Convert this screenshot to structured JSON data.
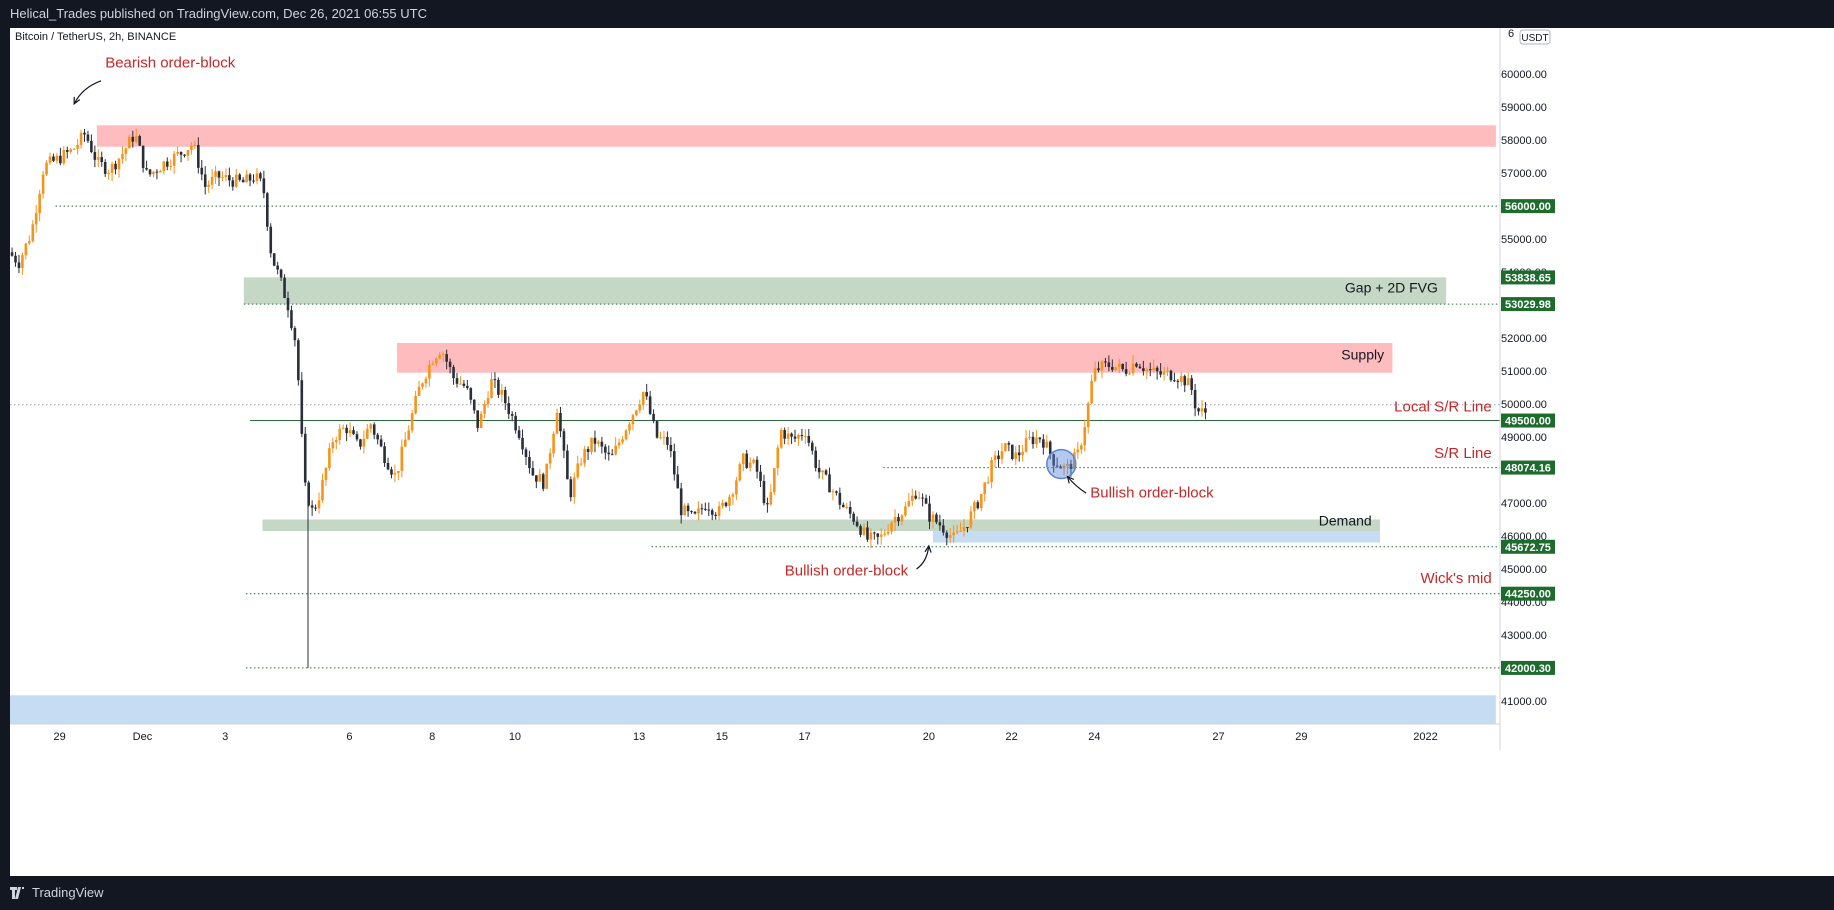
{
  "header": {
    "published": "Helical_Trades published on TradingView.com, Dec 26, 2021 06:55 UTC"
  },
  "footer": {
    "brand": "TradingView"
  },
  "chart_data": {
    "type": "candlestick",
    "symbol_label": "Bitcoin / TetherUS, 2h, BINANCE",
    "currency_badge": "USDT",
    "y_axis": {
      "range": [
        40300,
        61400
      ],
      "ticks": [
        41000,
        42000,
        43000,
        44000,
        45000,
        46000,
        47000,
        48000,
        49000,
        50000,
        51000,
        52000,
        54000,
        55000,
        57000,
        58000,
        59000,
        60000
      ],
      "tick_labels": [
        "41000.00",
        "42000.00",
        "43000.00",
        "44000.00",
        "45000.00",
        "46000.00",
        "47000.00",
        "48000.00",
        "49000.00",
        "50000.00",
        "51000.00",
        "52000.00",
        "54000.00",
        "55000.00",
        "57000.00",
        "58000.00",
        "59000.00",
        "60000.00"
      ],
      "top_partial_label": "6"
    },
    "x_axis": {
      "range_days": [
        -1.2,
        34.8
      ],
      "ticks": [
        {
          "day": 0,
          "label": "29"
        },
        {
          "day": 2,
          "label": "Dec"
        },
        {
          "day": 4,
          "label": "3"
        },
        {
          "day": 7,
          "label": "6"
        },
        {
          "day": 9,
          "label": "8"
        },
        {
          "day": 11,
          "label": "10"
        },
        {
          "day": 14,
          "label": "13"
        },
        {
          "day": 16,
          "label": "15"
        },
        {
          "day": 18,
          "label": "17"
        },
        {
          "day": 21,
          "label": "20"
        },
        {
          "day": 23,
          "label": "22"
        },
        {
          "day": 25,
          "label": "24"
        },
        {
          "day": 28,
          "label": "27"
        },
        {
          "day": 30,
          "label": "29"
        },
        {
          "day": 33,
          "label": "2022"
        }
      ]
    },
    "price_markers": [
      {
        "label": "56000.00",
        "value": 56000,
        "color": "#1e6b2e"
      },
      {
        "label": "53838.65",
        "value": 53838.65,
        "color": "#1e6b2e"
      },
      {
        "label": "53029.98",
        "value": 53029.98,
        "color": "#1e6b2e"
      },
      {
        "label": "49500.00",
        "value": 49500,
        "color": "#1e6b2e"
      },
      {
        "label": "48074.16",
        "value": 48074.16,
        "color": "#1e6b2e"
      },
      {
        "label": "45672.75",
        "value": 45672.75,
        "color": "#1e6b2e"
      },
      {
        "label": "44250.00",
        "value": 44250,
        "color": "#1e6b2e"
      },
      {
        "label": "42000.30",
        "value": 42000.3,
        "color": "#1e6b2e"
      }
    ],
    "zones": [
      {
        "name": "bearish-order-block-zone",
        "x0": 0.9,
        "x1": 34.7,
        "y0": 57800,
        "y1": 58450,
        "color": "#ffbcbf"
      },
      {
        "name": "gap-fvg-zone",
        "x0": 4.45,
        "x1": 33.5,
        "y0": 53030,
        "y1": 53840,
        "color": "#c5d8c6"
      },
      {
        "name": "supply-zone",
        "x0": 8.15,
        "x1": 32.2,
        "y0": 50950,
        "y1": 51850,
        "color": "#ffbcbf"
      },
      {
        "name": "demand-zone",
        "x0": 4.9,
        "x1": 31.9,
        "y0": 46150,
        "y1": 46500,
        "color": "#c5d8c6"
      },
      {
        "name": "demand-lower-zone",
        "x0": 21.1,
        "x1": 31.9,
        "y0": 45800,
        "y1": 46150,
        "color": "#c6dcf3"
      },
      {
        "name": "bottom-blue-zone",
        "x0": -1.2,
        "x1": 34.7,
        "y0": 40300,
        "y1": 41170,
        "color": "#c6dcf3"
      }
    ],
    "lines": [
      {
        "name": "level-56000-line",
        "x0": -0.1,
        "y": 56000,
        "style": "dotted",
        "color": "#2e6b3c"
      },
      {
        "name": "level-53030-line",
        "x0": 4.45,
        "y": 53030,
        "style": "dotted",
        "color": "#2e6b3c"
      },
      {
        "name": "local-sr-line",
        "x0": 4.6,
        "y": 49500,
        "style": "solid",
        "color": "#2e6b3c"
      },
      {
        "name": "sr-line",
        "x0": 19.9,
        "y": 48074,
        "style": "dotted",
        "color": "#2e6b3c"
      },
      {
        "name": "level-45673-line",
        "x0": 14.3,
        "y": 45673,
        "style": "dotted",
        "color": "#2e6b3c"
      },
      {
        "name": "wicks-mid-line",
        "x0": 4.5,
        "y": 44250,
        "style": "dotted",
        "color": "#2e6b3c"
      },
      {
        "name": "level-42000-line",
        "x0": 4.5,
        "y": 42000,
        "style": "dotted",
        "color": "#2e6b3c"
      },
      {
        "name": "last-price-line",
        "x0": -1.2,
        "y": 49980,
        "style": "dotted",
        "color": "#9aa0ac"
      }
    ],
    "annotations": [
      {
        "name": "bearish-order-block-label",
        "text": "Bearish order-block",
        "x": 1.1,
        "y": 60200,
        "anchor": "start",
        "color": "#c62828"
      },
      {
        "name": "gap-fvg-label",
        "text": "Gap + 2D FVG",
        "x": 33.3,
        "y": 53380,
        "anchor": "end",
        "color": "#131722"
      },
      {
        "name": "supply-label",
        "text": "Supply",
        "x": 32.0,
        "y": 51350,
        "anchor": "end",
        "color": "#131722"
      },
      {
        "name": "local-sr-label",
        "text": "Local S/R Line",
        "x": 34.6,
        "y": 49780,
        "anchor": "end",
        "color": "#c62828"
      },
      {
        "name": "sr-line-label",
        "text": "S/R Line",
        "x": 34.6,
        "y": 48370,
        "anchor": "end",
        "color": "#c62828"
      },
      {
        "name": "bullish-order-block-label-right",
        "text": "Bullish order-block",
        "x": 24.9,
        "y": 47170,
        "anchor": "start",
        "color": "#c62828"
      },
      {
        "name": "demand-label",
        "text": "Demand",
        "x": 31.7,
        "y": 46320,
        "anchor": "end",
        "color": "#131722"
      },
      {
        "name": "bullish-order-block-label-left",
        "text": "Bullish order-block",
        "x": 20.5,
        "y": 44800,
        "anchor": "end",
        "color": "#c62828"
      },
      {
        "name": "wicks-mid-label",
        "text": "Wick's mid",
        "x": 34.6,
        "y": 44570,
        "anchor": "end",
        "color": "#c62828"
      }
    ],
    "arrows": [
      {
        "name": "bearish-arrow",
        "from": [
          1.0,
          59800
        ],
        "via": [
          0.55,
          59600
        ],
        "to": [
          0.35,
          59100
        ]
      },
      {
        "name": "bullish-arrow-right",
        "from": [
          24.8,
          47300
        ],
        "via": [
          24.55,
          47500
        ],
        "to": [
          24.35,
          47800
        ]
      },
      {
        "name": "bullish-arrow-left",
        "from": [
          20.7,
          45000
        ],
        "via": [
          20.95,
          45200
        ],
        "to": [
          21.0,
          45700
        ]
      }
    ],
    "highlight_circle": {
      "name": "bullish-order-block-circle",
      "x": 24.2,
      "y": 48180,
      "r_days": 0.35,
      "color": "#5b86d6"
    },
    "anchors": [
      {
        "d": -1.15,
        "p": 54600
      },
      {
        "d": -0.9,
        "p": 54300
      },
      {
        "d": -0.6,
        "p": 55200
      },
      {
        "d": -0.3,
        "p": 57200
      },
      {
        "d": 0.0,
        "p": 57400
      },
      {
        "d": 0.4,
        "p": 57700
      },
      {
        "d": 0.7,
        "p": 58200
      },
      {
        "d": 1.0,
        "p": 57300
      },
      {
        "d": 1.3,
        "p": 57100
      },
      {
        "d": 1.6,
        "p": 57600
      },
      {
        "d": 1.9,
        "p": 58200
      },
      {
        "d": 2.2,
        "p": 56900
      },
      {
        "d": 2.6,
        "p": 57300
      },
      {
        "d": 3.0,
        "p": 57600
      },
      {
        "d": 3.3,
        "p": 57900
      },
      {
        "d": 3.6,
        "p": 56600
      },
      {
        "d": 3.9,
        "p": 56900
      },
      {
        "d": 4.2,
        "p": 56800
      },
      {
        "d": 4.5,
        "p": 56700
      },
      {
        "d": 4.8,
        "p": 56900
      },
      {
        "d": 5.0,
        "p": 56600
      },
      {
        "d": 5.2,
        "p": 54500
      },
      {
        "d": 5.4,
        "p": 53800
      },
      {
        "d": 5.6,
        "p": 53000
      },
      {
        "d": 5.8,
        "p": 51800
      },
      {
        "d": 6.0,
        "p": 47500
      },
      {
        "d": 6.2,
        "p": 46700
      },
      {
        "d": 6.4,
        "p": 47400
      },
      {
        "d": 6.7,
        "p": 49000
      },
      {
        "d": 7.0,
        "p": 49300
      },
      {
        "d": 7.3,
        "p": 48700
      },
      {
        "d": 7.6,
        "p": 49400
      },
      {
        "d": 7.9,
        "p": 48500
      },
      {
        "d": 8.2,
        "p": 47800
      },
      {
        "d": 8.5,
        "p": 49200
      },
      {
        "d": 8.8,
        "p": 50600
      },
      {
        "d": 9.1,
        "p": 51400
      },
      {
        "d": 9.3,
        "p": 51700
      },
      {
        "d": 9.6,
        "p": 50800
      },
      {
        "d": 9.9,
        "p": 50500
      },
      {
        "d": 10.2,
        "p": 49300
      },
      {
        "d": 10.5,
        "p": 50700
      },
      {
        "d": 10.8,
        "p": 50200
      },
      {
        "d": 11.2,
        "p": 49100
      },
      {
        "d": 11.5,
        "p": 47900
      },
      {
        "d": 11.8,
        "p": 47600
      },
      {
        "d": 12.1,
        "p": 49900
      },
      {
        "d": 12.4,
        "p": 47200
      },
      {
        "d": 12.7,
        "p": 48400
      },
      {
        "d": 13.0,
        "p": 48900
      },
      {
        "d": 13.4,
        "p": 48300
      },
      {
        "d": 13.8,
        "p": 49400
      },
      {
        "d": 14.2,
        "p": 50400
      },
      {
        "d": 14.5,
        "p": 49000
      },
      {
        "d": 14.8,
        "p": 48800
      },
      {
        "d": 15.1,
        "p": 46800
      },
      {
        "d": 15.4,
        "p": 46500
      },
      {
        "d": 15.7,
        "p": 47000
      },
      {
        "d": 16.0,
        "p": 46700
      },
      {
        "d": 16.3,
        "p": 47300
      },
      {
        "d": 16.6,
        "p": 48300
      },
      {
        "d": 16.9,
        "p": 48100
      },
      {
        "d": 17.2,
        "p": 46700
      },
      {
        "d": 17.5,
        "p": 49200
      },
      {
        "d": 17.8,
        "p": 48900
      },
      {
        "d": 18.1,
        "p": 49200
      },
      {
        "d": 18.4,
        "p": 48000
      },
      {
        "d": 18.7,
        "p": 47500
      },
      {
        "d": 19.0,
        "p": 46900
      },
      {
        "d": 19.3,
        "p": 46500
      },
      {
        "d": 19.6,
        "p": 45900
      },
      {
        "d": 19.9,
        "p": 45900
      },
      {
        "d": 20.2,
        "p": 46500
      },
      {
        "d": 20.5,
        "p": 46800
      },
      {
        "d": 20.8,
        "p": 47400
      },
      {
        "d": 21.1,
        "p": 46600
      },
      {
        "d": 21.4,
        "p": 46300
      },
      {
        "d": 21.7,
        "p": 45900
      },
      {
        "d": 22.0,
        "p": 46400
      },
      {
        "d": 22.3,
        "p": 47100
      },
      {
        "d": 22.6,
        "p": 48100
      },
      {
        "d": 22.9,
        "p": 48700
      },
      {
        "d": 23.2,
        "p": 48400
      },
      {
        "d": 23.5,
        "p": 48900
      },
      {
        "d": 23.8,
        "p": 49000
      },
      {
        "d": 24.1,
        "p": 48300
      },
      {
        "d": 24.4,
        "p": 48000
      },
      {
        "d": 24.7,
        "p": 48500
      },
      {
        "d": 24.9,
        "p": 49700
      },
      {
        "d": 25.05,
        "p": 50900
      },
      {
        "d": 25.2,
        "p": 51100
      },
      {
        "d": 25.5,
        "p": 51200
      },
      {
        "d": 25.8,
        "p": 51000
      },
      {
        "d": 26.1,
        "p": 51300
      },
      {
        "d": 26.4,
        "p": 51000
      },
      {
        "d": 26.7,
        "p": 50900
      },
      {
        "d": 27.0,
        "p": 50900
      },
      {
        "d": 27.3,
        "p": 50700
      },
      {
        "d": 27.45,
        "p": 50400
      },
      {
        "d": 27.55,
        "p": 49800
      },
      {
        "d": 27.7,
        "p": 49750
      }
    ]
  }
}
